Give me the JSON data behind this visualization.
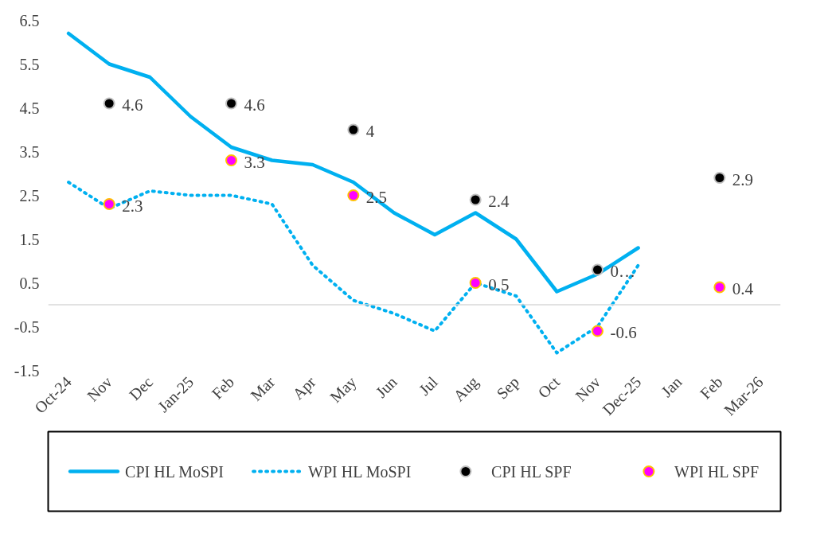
{
  "chart_data": {
    "type": "line",
    "categories": [
      "Oct-24",
      "Nov",
      "Dec",
      "Jan-25",
      "Feb",
      "Mar",
      "Apr",
      "May",
      "Jun",
      "Jul",
      "Aug",
      "Sep",
      "Oct",
      "Nov",
      "Dec-25",
      "Jan",
      "Feb",
      "Mar-26"
    ],
    "ylim": [
      -1.5,
      6.5
    ],
    "yticks": [
      -1.5,
      -0.5,
      0.5,
      1.5,
      2.5,
      3.5,
      4.5,
      5.5,
      6.5
    ],
    "grid": false,
    "legend": "bottom",
    "ref_lines": [
      {
        "axis": "y",
        "value": 0,
        "color": "#d9d9d9"
      }
    ],
    "series": [
      {
        "name": "CPI HL MoSPI",
        "color": "#00b0f0",
        "line_style": "solid",
        "values": [
          6.2,
          5.5,
          5.2,
          4.3,
          3.6,
          3.3,
          3.2,
          2.8,
          2.1,
          1.6,
          2.1,
          1.5,
          0.3,
          0.7,
          1.3,
          null,
          null,
          null
        ]
      },
      {
        "name": "WPI HL MoSPI",
        "color": "#00b0f0",
        "line_style": "dotted",
        "values": [
          2.8,
          2.2,
          2.6,
          2.5,
          2.5,
          2.3,
          0.9,
          0.1,
          -0.2,
          -0.6,
          0.5,
          0.2,
          -1.1,
          -0.5,
          0.9,
          null,
          null,
          null
        ]
      },
      {
        "name": "CPI HL SPF",
        "type": "scatter",
        "color": "#000000",
        "marker": "circle",
        "values": [
          null,
          4.6,
          null,
          null,
          4.6,
          null,
          null,
          4.0,
          null,
          null,
          2.4,
          null,
          null,
          0.8,
          null,
          null,
          2.9,
          null
        ],
        "value_labels": [
          null,
          "4.6",
          null,
          null,
          "4.6",
          null,
          null,
          "4",
          null,
          null,
          "2.4",
          null,
          null,
          "0…",
          null,
          null,
          "2.9",
          null
        ]
      },
      {
        "name": "WPI HL SPF",
        "type": "scatter",
        "color": "#ff00ff",
        "marker": "circle",
        "values": [
          null,
          2.3,
          null,
          null,
          3.3,
          null,
          null,
          2.5,
          null,
          null,
          0.5,
          null,
          null,
          -0.6,
          null,
          null,
          0.4,
          null
        ],
        "value_labels": [
          null,
          "2.3",
          null,
          null,
          "3.3",
          null,
          null,
          "2.5",
          null,
          null,
          "0.5",
          null,
          null,
          "-0.6",
          null,
          null,
          "0.4",
          null
        ]
      }
    ]
  }
}
